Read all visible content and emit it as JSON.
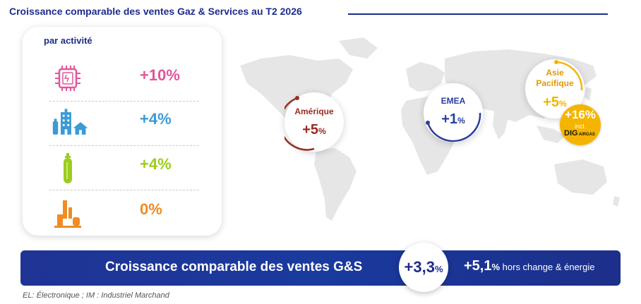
{
  "title": "Croissance comparable des ventes Gaz & Services au T2 2026",
  "activity": {
    "heading": "par activité",
    "rows": [
      {
        "icon": "electronics-chip-icon",
        "value": "+10%",
        "color": "#e0579a"
      },
      {
        "icon": "healthcare-building-icon",
        "value": "+4%",
        "color": "#3a9bd5"
      },
      {
        "icon": "gas-cylinder-icon",
        "value": "+4%",
        "color": "#9ccc1f"
      },
      {
        "icon": "industrial-plant-icon",
        "value": "0%",
        "color": "#f08c24"
      }
    ]
  },
  "regions": {
    "americas": {
      "name": "Amérique",
      "value": "+5",
      "unit": "%",
      "color": "#9b2b22"
    },
    "emea": {
      "name": "EMEA",
      "value": "+1",
      "unit": "%",
      "color": "#2a3f9e"
    },
    "apac": {
      "name": "Asie\nPacifique",
      "value": "+5",
      "unit": "%",
      "color": "#f5b400"
    },
    "apac_dig": {
      "value": "+16%",
      "incl": "incl.",
      "brand": "DIG",
      "brand_sub": "AIRGAS"
    }
  },
  "banner": {
    "label": "Croissance comparable des ventes G&S",
    "center_value": "+3,3",
    "center_unit": "%",
    "right_value": "+5,1",
    "right_unit": "%",
    "right_text": " hors change & énergie"
  },
  "footnote": "EL: Électronique ; IM : Industriel Marchand"
}
